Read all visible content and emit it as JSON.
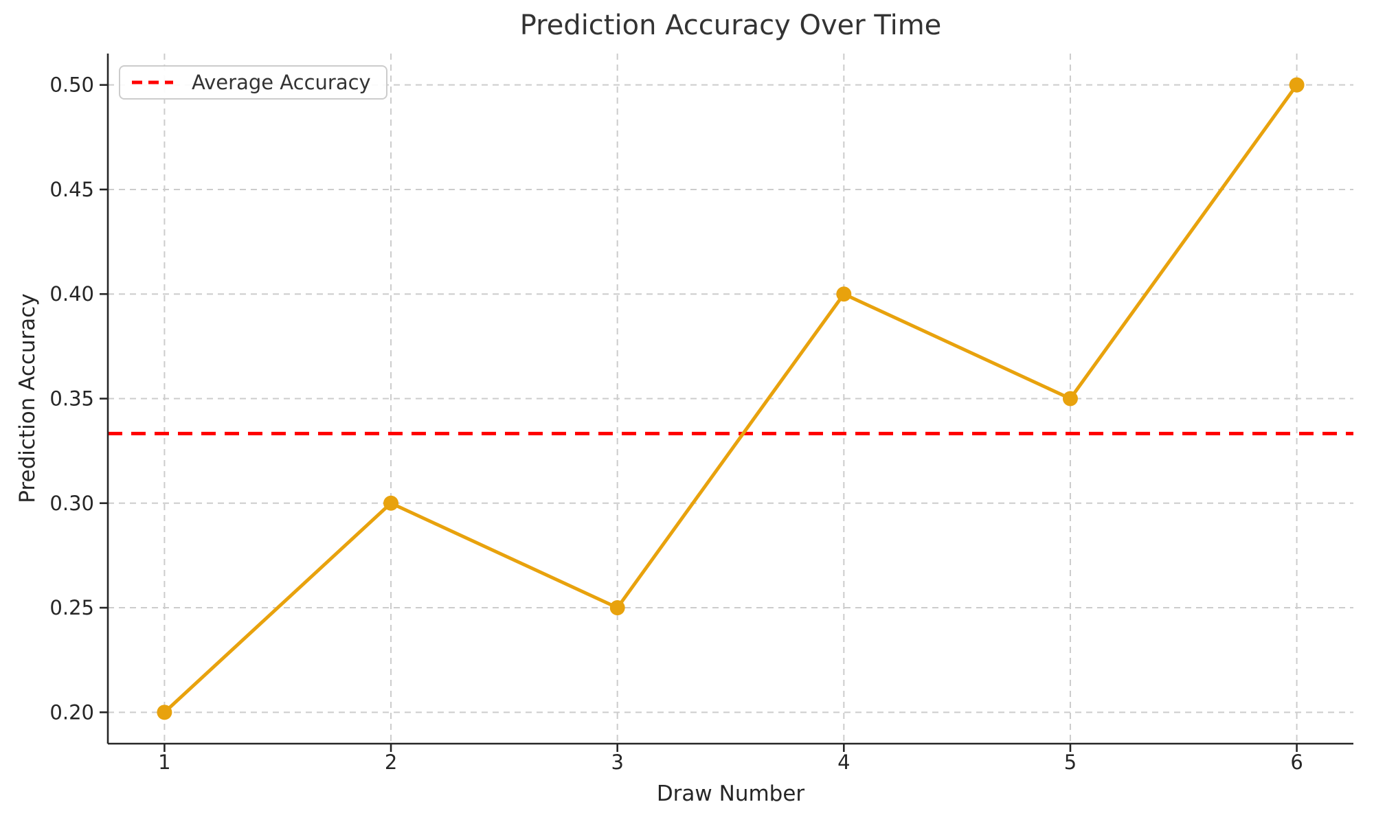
{
  "chart_data": {
    "type": "line",
    "title": "Prediction Accuracy Over Time",
    "xlabel": "Draw Number",
    "ylabel": "Prediction Accuracy",
    "x": [
      1,
      2,
      3,
      4,
      5,
      6
    ],
    "series": [
      {
        "name": "Prediction Accuracy",
        "values": [
          0.2,
          0.3,
          0.25,
          0.4,
          0.35,
          0.5
        ],
        "color": "#E8A20D",
        "marker": "circle",
        "line_style": "solid"
      }
    ],
    "average_line": {
      "label": "Average Accuracy",
      "value": 0.3333,
      "color": "#FF0000",
      "line_style": "dashed"
    },
    "xlim": [
      0.75,
      6.25
    ],
    "ylim": [
      0.185,
      0.515
    ],
    "xticks": [
      1,
      2,
      3,
      4,
      5,
      6
    ],
    "xtick_labels": [
      "1",
      "2",
      "3",
      "4",
      "5",
      "6"
    ],
    "yticks": [
      0.2,
      0.25,
      0.3,
      0.35,
      0.4,
      0.45,
      0.5
    ],
    "ytick_labels": [
      "0.20",
      "0.25",
      "0.30",
      "0.35",
      "0.40",
      "0.45",
      "0.50"
    ],
    "grid": "both-dashed",
    "legend_position": "upper-left"
  },
  "colors": {
    "grid": "#cccccc",
    "spine": "#262626",
    "text": "#333333"
  }
}
